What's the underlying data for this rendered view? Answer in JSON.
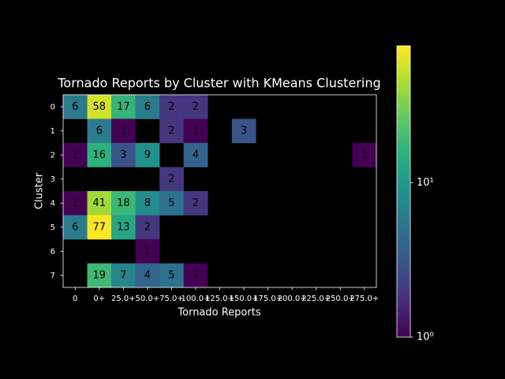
{
  "chart_data": {
    "type": "heatmap",
    "title": "Tornado Reports by Cluster with KMeans Clustering",
    "x_label": "Tornado Reports",
    "y_label": "Cluster",
    "x_categories": [
      "0",
      "0+",
      "25.0+",
      "50.0+",
      "75.0+",
      "100.0+",
      "125.0+",
      "150.0+",
      "175.0+",
      "200.0+",
      "225.0+",
      "250.0+",
      "275.0+"
    ],
    "y_categories": [
      "0",
      "1",
      "2",
      "3",
      "4",
      "5",
      "6",
      "7"
    ],
    "values": [
      [
        6,
        58,
        17,
        6,
        2,
        2,
        null,
        null,
        null,
        null,
        null,
        null,
        null
      ],
      [
        null,
        6,
        1,
        null,
        2,
        1,
        null,
        3,
        null,
        null,
        null,
        null,
        null
      ],
      [
        1,
        16,
        3,
        9,
        null,
        4,
        null,
        null,
        null,
        null,
        null,
        null,
        1
      ],
      [
        null,
        null,
        null,
        null,
        2,
        null,
        null,
        null,
        null,
        null,
        null,
        null,
        null
      ],
      [
        1,
        41,
        18,
        8,
        5,
        2,
        null,
        null,
        null,
        null,
        null,
        null,
        null
      ],
      [
        6,
        77,
        13,
        2,
        null,
        null,
        null,
        null,
        null,
        null,
        null,
        null,
        null
      ],
      [
        null,
        null,
        null,
        1,
        null,
        null,
        null,
        null,
        null,
        null,
        null,
        null,
        null
      ],
      [
        null,
        19,
        7,
        4,
        5,
        1,
        null,
        null,
        null,
        null,
        null,
        null,
        null
      ]
    ],
    "colormap": "viridis",
    "color_scale": "log",
    "clim": [
      1,
      77
    ],
    "cticks": [
      {
        "value": 1,
        "label": "10⁰"
      },
      {
        "value": 10,
        "label": "10¹"
      }
    ]
  }
}
